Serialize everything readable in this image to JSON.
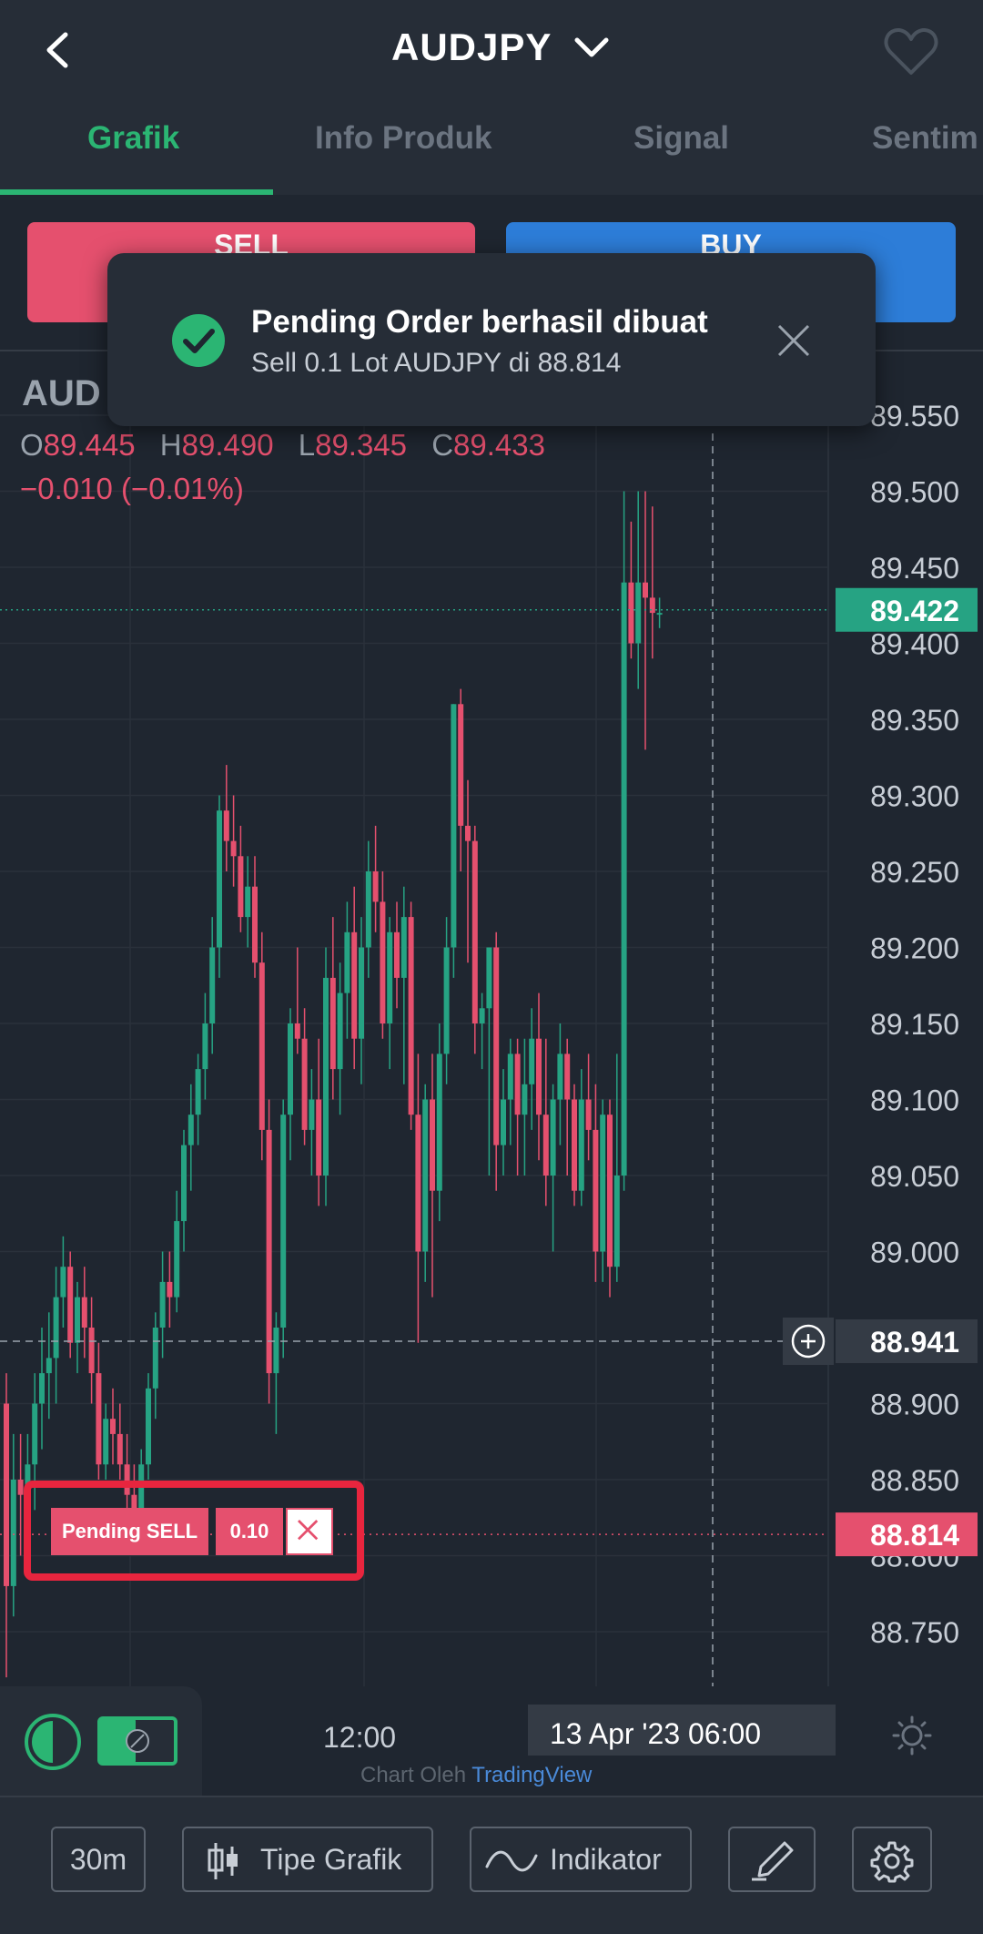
{
  "header": {
    "title": "AUDJPY"
  },
  "tabs": [
    {
      "label": "Grafik"
    },
    {
      "label": "Info Produk"
    },
    {
      "label": "Signal"
    },
    {
      "label": "Sentim"
    }
  ],
  "trade": {
    "sell_label": "SELL",
    "buy_label": "BUY"
  },
  "toast": {
    "title": "Pending Order berhasil dibuat",
    "subtitle": "Sell 0.1 Lot AUDJPY di 88.814"
  },
  "chart": {
    "symbol": "AUD",
    "ohlc": {
      "o_label": "O",
      "o": "89.445",
      "h_label": "H",
      "h": "89.490",
      "l_label": "L",
      "l": "89.345",
      "c_label": "C",
      "c": "89.433"
    },
    "change": "−0.010 (−0.01%)",
    "current_price": "89.422",
    "crosshair_price": "88.941",
    "pending_price": "88.814",
    "pending_label": "Pending SELL",
    "pending_qty": "0.10",
    "time_axis": {
      "t1": "12:00",
      "crosshair": "13 Apr '23   06:00"
    },
    "credit_prefix": "Chart Oleh",
    "credit_brand": "TradingView",
    "colors": {
      "up": "#26a383",
      "down": "#e5506e",
      "accent": "#2bb573"
    }
  },
  "chart_data": {
    "type": "candlestick",
    "title": "",
    "ylim": [
      88.7,
      89.57
    ],
    "yticks": [
      "89.550",
      "89.500",
      "89.450",
      "89.400",
      "89.350",
      "89.300",
      "89.250",
      "89.200",
      "89.150",
      "89.100",
      "89.050",
      "89.000",
      "88.900",
      "88.850",
      "88.800",
      "88.750"
    ],
    "grid": true,
    "candles": [
      [
        88.9,
        88.92,
        88.72,
        88.78
      ],
      [
        88.78,
        88.88,
        88.76,
        88.85
      ],
      [
        88.85,
        88.88,
        88.8,
        88.84
      ],
      [
        88.84,
        88.88,
        88.81,
        88.86
      ],
      [
        88.86,
        88.92,
        88.83,
        88.9
      ],
      [
        88.9,
        88.95,
        88.87,
        88.92
      ],
      [
        88.92,
        88.96,
        88.89,
        88.93
      ],
      [
        88.93,
        88.99,
        88.9,
        88.97
      ],
      [
        88.97,
        89.01,
        88.95,
        88.99
      ],
      [
        88.99,
        89.0,
        88.93,
        88.94
      ],
      [
        88.94,
        88.98,
        88.92,
        88.97
      ],
      [
        88.97,
        88.99,
        88.93,
        88.95
      ],
      [
        88.95,
        88.97,
        88.9,
        88.92
      ],
      [
        88.92,
        88.94,
        88.85,
        88.86
      ],
      [
        88.86,
        88.9,
        88.85,
        88.89
      ],
      [
        88.89,
        88.91,
        88.86,
        88.88
      ],
      [
        88.88,
        88.9,
        88.85,
        88.86
      ],
      [
        88.86,
        88.88,
        88.83,
        88.84
      ],
      [
        88.84,
        88.86,
        88.82,
        88.83
      ],
      [
        88.83,
        88.87,
        88.82,
        88.86
      ],
      [
        88.86,
        88.92,
        88.85,
        88.91
      ],
      [
        88.91,
        88.96,
        88.89,
        88.95
      ],
      [
        88.95,
        89.0,
        88.93,
        88.98
      ],
      [
        88.98,
        89.0,
        88.95,
        88.97
      ],
      [
        88.97,
        89.04,
        88.96,
        89.02
      ],
      [
        89.02,
        89.08,
        89.0,
        89.07
      ],
      [
        89.07,
        89.11,
        89.04,
        89.09
      ],
      [
        89.09,
        89.13,
        89.07,
        89.12
      ],
      [
        89.12,
        89.17,
        89.1,
        89.15
      ],
      [
        89.15,
        89.22,
        89.13,
        89.2
      ],
      [
        89.2,
        89.3,
        89.18,
        89.29
      ],
      [
        89.29,
        89.32,
        89.25,
        89.27
      ],
      [
        89.27,
        89.3,
        89.24,
        89.26
      ],
      [
        89.26,
        89.28,
        89.21,
        89.22
      ],
      [
        89.22,
        89.26,
        89.2,
        89.24
      ],
      [
        89.24,
        89.26,
        89.18,
        89.19
      ],
      [
        89.19,
        89.21,
        89.06,
        89.08
      ],
      [
        89.08,
        89.1,
        88.9,
        88.92
      ],
      [
        88.92,
        88.96,
        88.88,
        88.95
      ],
      [
        88.95,
        89.1,
        88.93,
        89.09
      ],
      [
        89.09,
        89.16,
        89.06,
        89.15
      ],
      [
        89.15,
        89.2,
        89.13,
        89.14
      ],
      [
        89.14,
        89.16,
        89.07,
        89.08
      ],
      [
        89.08,
        89.12,
        89.05,
        89.1
      ],
      [
        89.1,
        89.14,
        89.03,
        89.05
      ],
      [
        89.05,
        89.2,
        89.03,
        89.18
      ],
      [
        89.18,
        89.22,
        89.1,
        89.12
      ],
      [
        89.12,
        89.19,
        89.09,
        89.17
      ],
      [
        89.17,
        89.23,
        89.14,
        89.21
      ],
      [
        89.21,
        89.24,
        89.12,
        89.14
      ],
      [
        89.14,
        89.22,
        89.11,
        89.2
      ],
      [
        89.2,
        89.27,
        89.18,
        89.25
      ],
      [
        89.25,
        89.28,
        89.21,
        89.23
      ],
      [
        89.23,
        89.25,
        89.14,
        89.15
      ],
      [
        89.15,
        89.22,
        89.12,
        89.21
      ],
      [
        89.21,
        89.23,
        89.16,
        89.18
      ],
      [
        89.18,
        89.24,
        89.11,
        89.22
      ],
      [
        89.22,
        89.23,
        89.08,
        89.09
      ],
      [
        89.09,
        89.13,
        88.94,
        89.0
      ],
      [
        89.0,
        89.11,
        88.98,
        89.1
      ],
      [
        89.1,
        89.13,
        88.97,
        89.04
      ],
      [
        89.04,
        89.15,
        89.02,
        89.13
      ],
      [
        89.13,
        89.22,
        89.11,
        89.2
      ],
      [
        89.2,
        89.36,
        89.18,
        89.36
      ],
      [
        89.36,
        89.37,
        89.25,
        89.28
      ],
      [
        89.28,
        89.31,
        89.19,
        89.27
      ],
      [
        89.27,
        89.28,
        89.13,
        89.15
      ],
      [
        89.15,
        89.17,
        89.12,
        89.16
      ],
      [
        89.16,
        89.2,
        89.05,
        89.2
      ],
      [
        89.2,
        89.21,
        89.04,
        89.07
      ],
      [
        89.07,
        89.12,
        89.05,
        89.1
      ],
      [
        89.1,
        89.14,
        89.07,
        89.13
      ],
      [
        89.13,
        89.14,
        89.05,
        89.09
      ],
      [
        89.09,
        89.14,
        89.05,
        89.11
      ],
      [
        89.11,
        89.16,
        89.08,
        89.14
      ],
      [
        89.14,
        89.17,
        89.06,
        89.09
      ],
      [
        89.09,
        89.14,
        89.03,
        89.05
      ],
      [
        89.05,
        89.11,
        89.0,
        89.1
      ],
      [
        89.1,
        89.15,
        89.07,
        89.13
      ],
      [
        89.13,
        89.14,
        89.05,
        89.1
      ],
      [
        89.1,
        89.11,
        89.03,
        89.04
      ],
      [
        89.04,
        89.12,
        89.03,
        89.1
      ],
      [
        89.1,
        89.13,
        89.06,
        89.08
      ],
      [
        89.08,
        89.11,
        88.98,
        89.0
      ],
      [
        89.0,
        89.1,
        88.98,
        89.09
      ],
      [
        89.09,
        89.1,
        88.97,
        88.99
      ],
      [
        88.99,
        89.13,
        88.98,
        89.05
      ],
      [
        89.05,
        89.5,
        89.04,
        89.44
      ],
      [
        89.44,
        89.48,
        89.39,
        89.4
      ],
      [
        89.4,
        89.5,
        89.37,
        89.44
      ],
      [
        89.44,
        89.5,
        89.33,
        89.43
      ],
      [
        89.43,
        89.49,
        89.39,
        89.42
      ],
      [
        89.42,
        89.43,
        89.41,
        89.42
      ]
    ],
    "price_lines": {
      "current": 89.422,
      "crosshair": 88.941,
      "pending": 88.814
    }
  }
}
